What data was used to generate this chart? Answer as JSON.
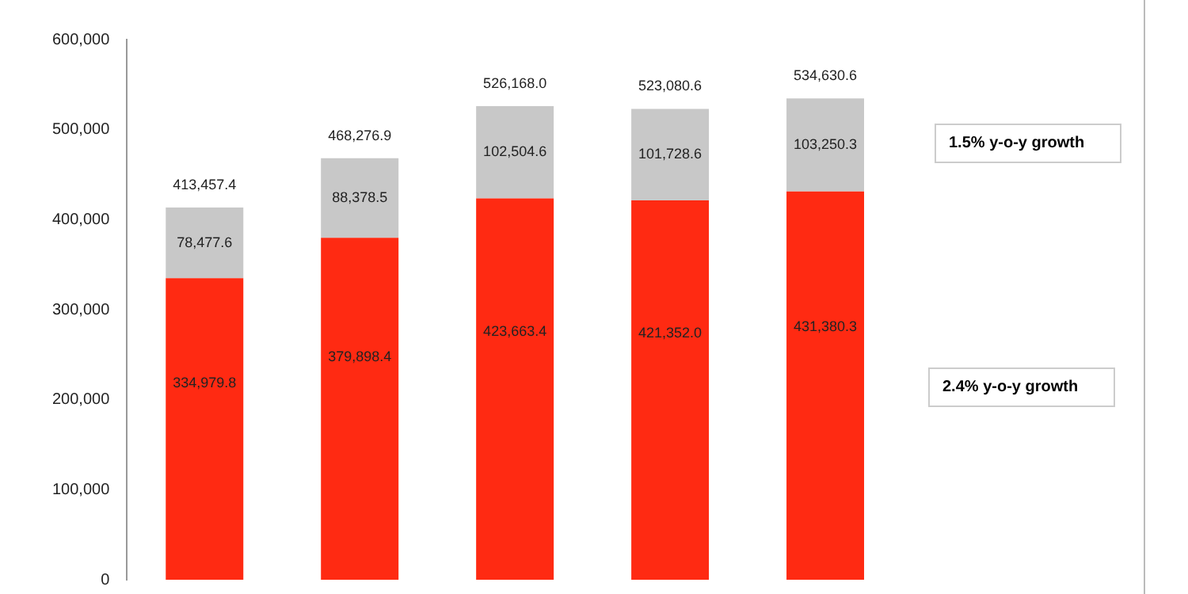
{
  "chart_data": {
    "type": "bar",
    "stacked": true,
    "categories": [
      null,
      null,
      null,
      null,
      null
    ],
    "series": [
      {
        "color": "#ff2a12",
        "values": [
          334979.8,
          379898.4,
          423663.4,
          421352.0,
          431380.3
        ],
        "value_labels": [
          "334,979.8",
          "379,898.4",
          "423,663.4",
          "421,352.0",
          "431,380.3"
        ]
      },
      {
        "color": "#c8c8c8",
        "values": [
          78477.6,
          88378.5,
          102504.6,
          101728.6,
          103250.3
        ],
        "value_labels": [
          "78,477.6",
          "88,378.5",
          "102,504.6",
          "101,728.6",
          "103,250.3"
        ]
      }
    ],
    "totals": [
      "413,457.4",
      "468,276.9",
      "526,168.0",
      "523,080.6",
      "534,630.6"
    ],
    "ylim": [
      0,
      600000
    ],
    "yticks": [
      {
        "value": 0,
        "label": "0"
      },
      {
        "value": 100000,
        "label": "100,000"
      },
      {
        "value": 200000,
        "label": "200,000"
      },
      {
        "value": 300000,
        "label": "300,000"
      },
      {
        "value": 400000,
        "label": "400,000"
      },
      {
        "value": 500000,
        "label": "500,000"
      },
      {
        "value": 600000,
        "label": "600,000"
      }
    ],
    "grid": false,
    "legend": false,
    "annotations": [
      "1.5% y-o-y growth",
      "2.4% y-o-y growth"
    ]
  }
}
